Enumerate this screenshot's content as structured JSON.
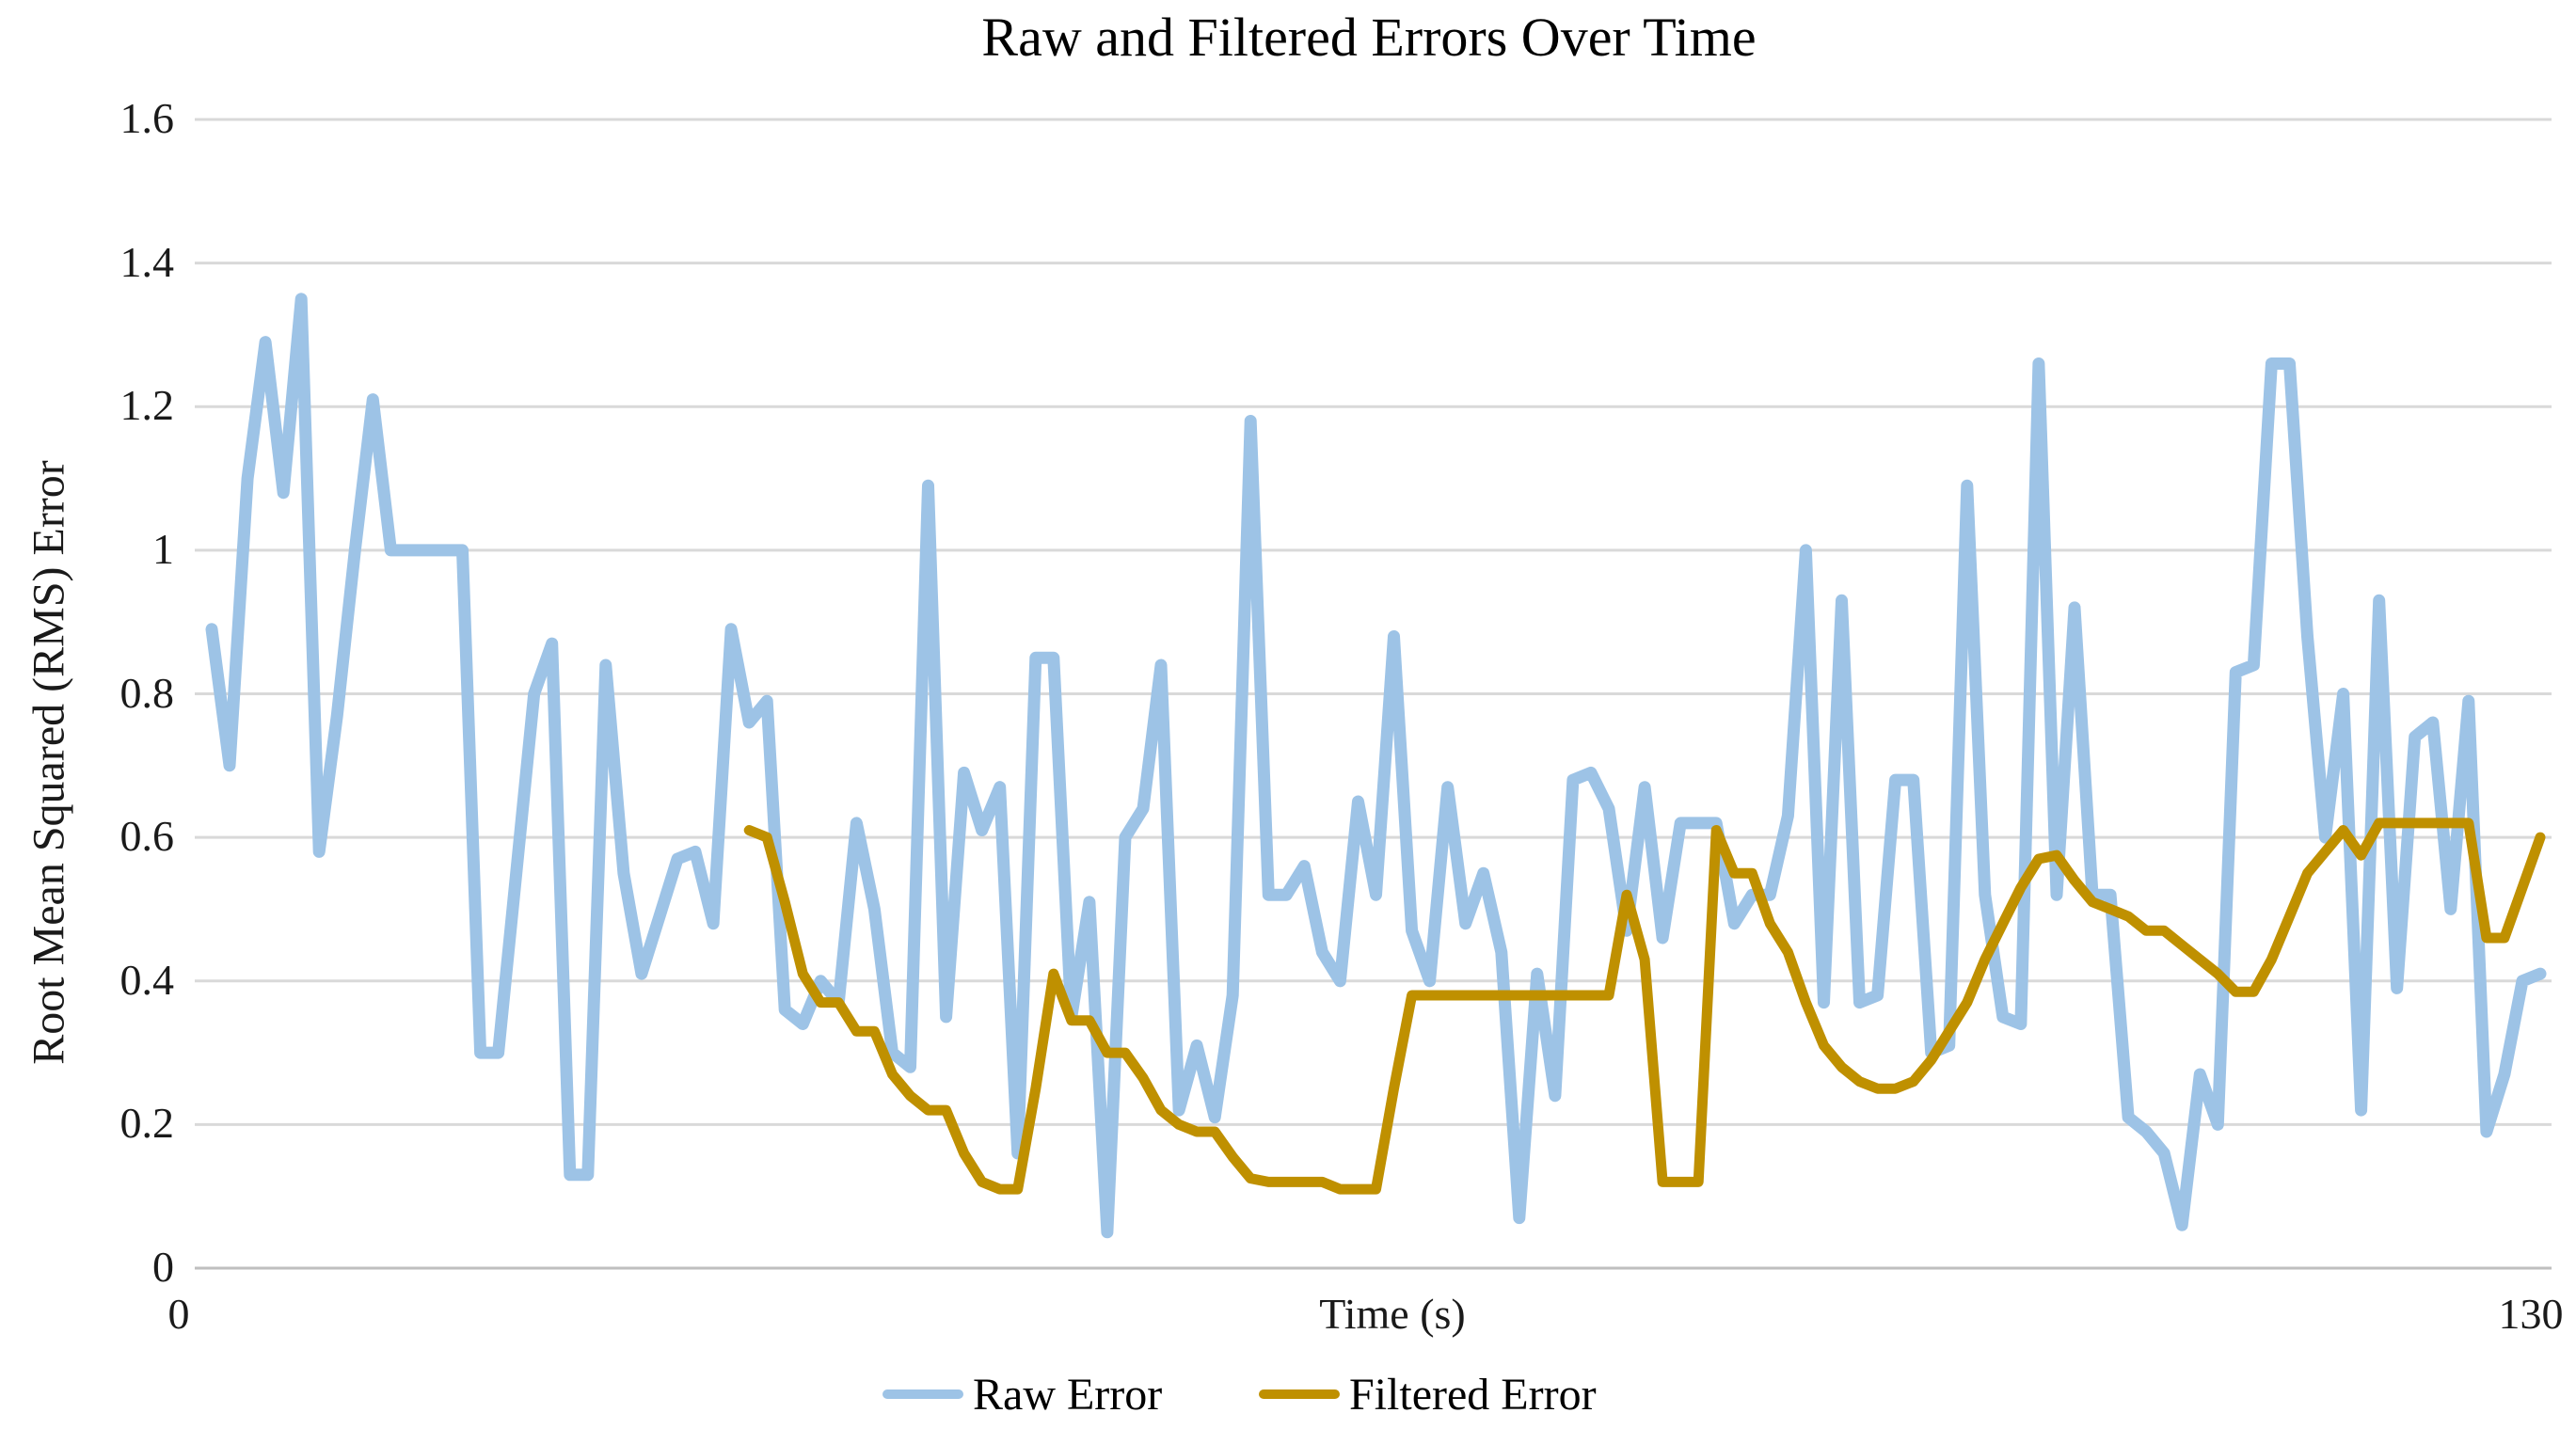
{
  "title": "Raw and Filtered Errors Over Time",
  "axes": {
    "x_title": "Time (s)",
    "y_title": "Root Mean Squared (RMS) Error",
    "x_tick_labels": [
      "0",
      "130"
    ],
    "y_tick_labels": [
      "1.6",
      "1.4",
      "1.2",
      "1",
      "0.8",
      "0.6",
      "0.4",
      "0.2",
      "0"
    ]
  },
  "legend": {
    "items": [
      {
        "label": "Raw Error",
        "color": "#9DC3E6"
      },
      {
        "label": "Filtered Error",
        "color": "#BF9000"
      }
    ]
  },
  "colors": {
    "raw_series": "#9DC3E6",
    "filtered_series": "#BF9000",
    "gridline": "#D9D9D9",
    "axis_line": "#BFBFBF",
    "text": "#1a1a1a"
  },
  "chart_data": {
    "type": "line",
    "title": "Raw and Filtered Errors Over Time",
    "xlabel": "Time (s)",
    "ylabel": "Root Mean Squared (RMS) Error",
    "xlim": [
      0,
      130
    ],
    "ylim": [
      0,
      1.6
    ],
    "y_tick_step": 0.2,
    "grid": "horizontal",
    "legend_position": "bottom",
    "series": [
      {
        "name": "Raw Error",
        "color": "#9DC3E6",
        "x_start": 0,
        "x_step": 1,
        "values": [
          0.89,
          0.7,
          1.1,
          1.29,
          1.08,
          1.35,
          0.58,
          0.77,
          1.0,
          1.21,
          1.0,
          1.0,
          1.0,
          1.0,
          1.0,
          0.3,
          0.3,
          0.55,
          0.8,
          0.87,
          0.13,
          0.13,
          0.84,
          0.55,
          0.41,
          0.49,
          0.57,
          0.58,
          0.48,
          0.89,
          0.76,
          0.79,
          0.36,
          0.34,
          0.4,
          0.37,
          0.62,
          0.5,
          0.3,
          0.28,
          1.09,
          0.35,
          0.69,
          0.61,
          0.67,
          0.16,
          0.85,
          0.85,
          0.35,
          0.51,
          0.05,
          0.6,
          0.64,
          0.84,
          0.22,
          0.31,
          0.21,
          0.38,
          1.18,
          0.52,
          0.52,
          0.56,
          0.44,
          0.4,
          0.65,
          0.52,
          0.88,
          0.47,
          0.4,
          0.67,
          0.48,
          0.55,
          0.44,
          0.07,
          0.41,
          0.24,
          0.68,
          0.69,
          0.64,
          0.47,
          0.67,
          0.46,
          0.62,
          0.62,
          0.62,
          0.48,
          0.52,
          0.52,
          0.63,
          1.0,
          0.37,
          0.93,
          0.37,
          0.38,
          0.68,
          0.68,
          0.3,
          0.31,
          1.09,
          0.52,
          0.35,
          0.34,
          1.26,
          0.52,
          0.92,
          0.52,
          0.52,
          0.21,
          0.19,
          0.16,
          0.06,
          0.27,
          0.2,
          0.83,
          0.84,
          1.26,
          1.26,
          0.88,
          0.6,
          0.8,
          0.22,
          0.93,
          0.39,
          0.74,
          0.76,
          0.5,
          0.79,
          0.19,
          0.27,
          0.4,
          0.41
        ]
      },
      {
        "name": "Filtered Error",
        "color": "#BF9000",
        "x_start": 30,
        "x_step": 1,
        "values": [
          0.61,
          0.6,
          0.51,
          0.41,
          0.37,
          0.37,
          0.33,
          0.33,
          0.27,
          0.24,
          0.22,
          0.22,
          0.16,
          0.12,
          0.11,
          0.11,
          0.25,
          0.41,
          0.345,
          0.345,
          0.3,
          0.3,
          0.265,
          0.22,
          0.2,
          0.19,
          0.19,
          0.155,
          0.125,
          0.12,
          0.12,
          0.12,
          0.12,
          0.11,
          0.11,
          0.11,
          0.25,
          0.38,
          0.38,
          0.38,
          0.38,
          0.38,
          0.38,
          0.38,
          0.38,
          0.38,
          0.38,
          0.38,
          0.38,
          0.52,
          0.43,
          0.12,
          0.12,
          0.12,
          0.61,
          0.55,
          0.55,
          0.48,
          0.44,
          0.37,
          0.31,
          0.28,
          0.26,
          0.25,
          0.25,
          0.26,
          0.29,
          0.33,
          0.37,
          0.43,
          0.48,
          0.53,
          0.57,
          0.575,
          0.54,
          0.51,
          0.5,
          0.49,
          0.47,
          0.47,
          0.45,
          0.43,
          0.41,
          0.385,
          0.385,
          0.43,
          0.49,
          0.55,
          0.58,
          0.61,
          0.575,
          0.62,
          0.62,
          0.62,
          0.62,
          0.62,
          0.62,
          0.46,
          0.46,
          0.53,
          0.6
        ]
      }
    ]
  }
}
